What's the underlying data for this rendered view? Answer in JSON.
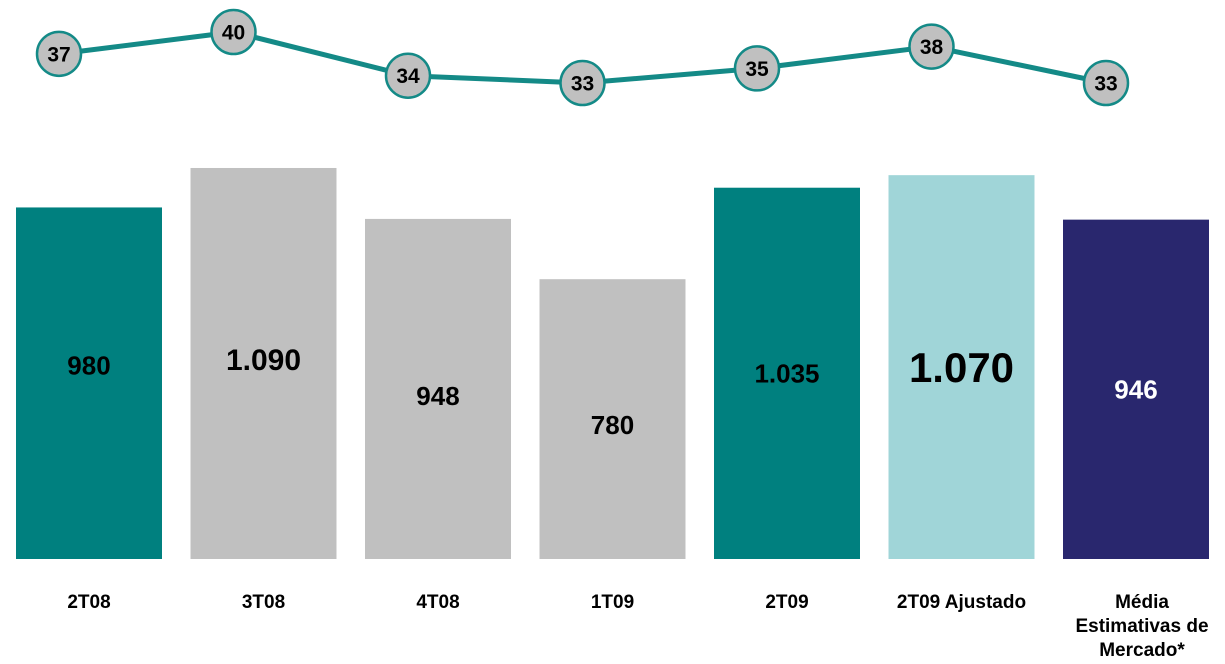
{
  "chart_data": {
    "type": "bar",
    "categories": [
      "2T08",
      "3T08",
      "4T08",
      "1T09",
      "2T09",
      "2T09 Ajustado",
      "Média Estimativas de Mercado*"
    ],
    "category_lines": [
      [
        "2T08"
      ],
      [
        "3T08"
      ],
      [
        "4T08"
      ],
      [
        "1T09"
      ],
      [
        "2T09"
      ],
      [
        "2T09 Ajustado"
      ],
      [
        "Média",
        "Estimativas de",
        "Mercado*"
      ]
    ],
    "series": [
      {
        "values": [
          980,
          1090,
          948,
          780,
          1035,
          1070,
          946
        ],
        "value_labels": [
          "980",
          "1.090",
          "948",
          "780",
          "1.035",
          "1.070",
          "946"
        ],
        "colors": [
          "#00807f",
          "#c0c0c0",
          "#c0c0c0",
          "#c0c0c0",
          "#00807f",
          "#a0d5d8",
          "#29276e"
        ],
        "label_colors": [
          "#000000",
          "#000000",
          "#000000",
          "#000000",
          "#000000",
          "#000000",
          "#ffffff"
        ]
      },
      {
        "type": "line",
        "values": [
          37,
          40,
          34,
          33,
          35,
          38,
          33
        ],
        "value_labels": [
          "37",
          "40",
          "34",
          "33",
          "35",
          "38",
          "33"
        ],
        "line_color": "#148a87",
        "marker_color": "#c0c0c0"
      }
    ],
    "title": "",
    "xlabel": "",
    "ylabel": "",
    "ylim": [
      0,
      1200
    ],
    "line_ylim": [
      30,
      41
    ],
    "grid": false,
    "legend": "none"
  }
}
